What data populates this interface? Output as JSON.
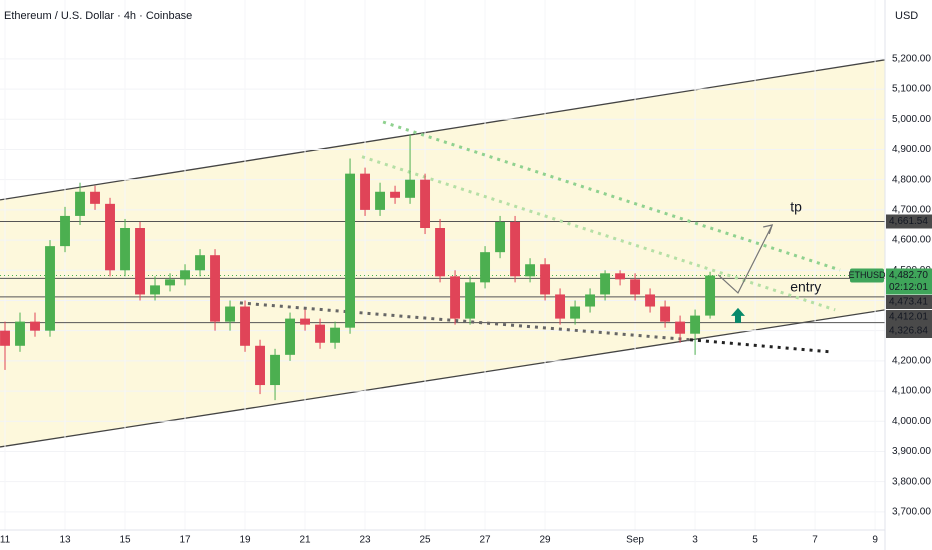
{
  "chart_data": {
    "type": "candlestick",
    "title": "Ethereum / U.S. Dollar · 4h · Coinbase",
    "currency": "USD",
    "x": [
      0,
      0.5,
      1,
      1.5,
      2,
      2.5,
      3,
      3.5,
      4,
      4.5,
      5,
      5.5,
      6,
      6.5,
      7,
      7.5,
      8,
      8.5,
      9,
      9.5,
      10,
      10.5,
      11,
      11.5,
      12,
      12.5,
      13,
      13.5,
      14,
      14.5,
      15,
      15.5,
      16,
      16.5,
      17,
      17.5,
      18,
      18.5,
      19,
      19.5,
      20,
      20.5,
      21,
      21.5,
      22,
      22.5,
      23,
      23.5
    ],
    "open": [
      4300,
      4250,
      4330,
      4300,
      4580,
      4680,
      4760,
      4720,
      4500,
      4640,
      4420,
      4450,
      4470,
      4500,
      4550,
      4330,
      4380,
      4250,
      4120,
      4220,
      4340,
      4320,
      4260,
      4310,
      4820,
      4700,
      4760,
      4740,
      4800,
      4640,
      4480,
      4340,
      4460,
      4560,
      4660,
      4480,
      4520,
      4420,
      4340,
      4380,
      4420,
      4490,
      4470,
      4420,
      4380,
      4330,
      4290,
      4350
    ],
    "high": [
      4330,
      4360,
      4360,
      4600,
      4710,
      4790,
      4780,
      4740,
      4670,
      4660,
      4480,
      4490,
      4520,
      4570,
      4570,
      4400,
      4400,
      4270,
      4240,
      4360,
      4370,
      4340,
      4330,
      4870,
      4840,
      4790,
      4780,
      4950,
      4820,
      4670,
      4500,
      4480,
      4580,
      4680,
      4680,
      4540,
      4540,
      4440,
      4400,
      4440,
      4500,
      4500,
      4490,
      4440,
      4400,
      4350,
      4370,
      4495
    ],
    "low": [
      4170,
      4230,
      4280,
      4280,
      4560,
      4650,
      4700,
      4480,
      4480,
      4400,
      4400,
      4430,
      4450,
      4480,
      4300,
      4300,
      4230,
      4090,
      4070,
      4200,
      4300,
      4240,
      4240,
      4290,
      4680,
      4680,
      4720,
      4720,
      4620,
      4460,
      4320,
      4320,
      4440,
      4540,
      4460,
      4460,
      4400,
      4320,
      4320,
      4360,
      4400,
      4450,
      4400,
      4360,
      4310,
      4260,
      4220,
      4340
    ],
    "close": [
      4250,
      4330,
      4300,
      4580,
      4680,
      4760,
      4720,
      4500,
      4640,
      4420,
      4450,
      4470,
      4500,
      4550,
      4330,
      4380,
      4250,
      4120,
      4220,
      4340,
      4320,
      4260,
      4310,
      4820,
      4700,
      4760,
      4740,
      4800,
      4640,
      4480,
      4340,
      4460,
      4560,
      4660,
      4480,
      4520,
      4420,
      4340,
      4380,
      4420,
      4490,
      4470,
      4420,
      4380,
      4330,
      4290,
      4350,
      4482.7
    ],
    "up_color": "#4caf50",
    "down_color": "#e04458",
    "xlim": [
      -0.167,
      29.33
    ],
    "ylim": [
      3640,
      5395
    ],
    "xticks": [
      {
        "value": 0,
        "label": "11"
      },
      {
        "value": 2,
        "label": "13"
      },
      {
        "value": 4,
        "label": "15"
      },
      {
        "value": 6,
        "label": "17"
      },
      {
        "value": 8,
        "label": "19"
      },
      {
        "value": 10,
        "label": "21"
      },
      {
        "value": 12,
        "label": "23"
      },
      {
        "value": 14,
        "label": "25"
      },
      {
        "value": 16,
        "label": "27"
      },
      {
        "value": 18,
        "label": "29"
      },
      {
        "value": 21,
        "label": "Sep"
      },
      {
        "value": 23,
        "label": "3"
      },
      {
        "value": 25,
        "label": "5"
      },
      {
        "value": 27,
        "label": "7"
      },
      {
        "value": 29,
        "label": "9"
      }
    ],
    "yticks": [
      {
        "value": 3700,
        "label": "3,700.00"
      },
      {
        "value": 3800,
        "label": "3,800.00"
      },
      {
        "value": 3900,
        "label": "3,900.00"
      },
      {
        "value": 4000,
        "label": "4,000.00"
      },
      {
        "value": 4100,
        "label": "4,100.00"
      },
      {
        "value": 4200,
        "label": "4,200.00"
      },
      {
        "value": 4300,
        "label": "4,300.00"
      },
      {
        "value": 4400,
        "label": "4,400.00"
      },
      {
        "value": 4500,
        "label": "4,500.00"
      },
      {
        "value": 4600,
        "label": "4,600.00"
      },
      {
        "value": 4700,
        "label": "4,700.00"
      },
      {
        "value": 4800,
        "label": "4,800.00"
      },
      {
        "value": 4900,
        "label": "4,900.00"
      },
      {
        "value": 5000,
        "label": "5,000.00"
      },
      {
        "value": 5100,
        "label": "5,100.00"
      },
      {
        "value": 5200,
        "label": "5,200.00"
      }
    ],
    "levels": [
      {
        "value": 4661.54,
        "label": "4,661.54"
      },
      {
        "value": 4473.41,
        "label": "4,473.41"
      },
      {
        "value": 4412.01,
        "label": "4,412.01"
      },
      {
        "value": 4326.84,
        "label": "4,326.84"
      }
    ],
    "current_price": {
      "name": "ETHUSD",
      "value": 4482.7,
      "label": "4,482.70",
      "countdown": "02:12:01"
    },
    "channel": {
      "upper": {
        "x": [
          -0.167,
          29.33
        ],
        "y": [
          4733,
          5197
        ]
      },
      "lower": {
        "x": [
          -0.167,
          29.33
        ],
        "y": [
          3915,
          4369
        ]
      }
    },
    "dotted_lines": [
      {
        "color": "#8fd18f",
        "x": [
          12.6,
          27.83
        ],
        "y": [
          4991,
          4501
        ]
      },
      {
        "color": "#b5dfa5",
        "x": [
          11.9,
          27.67
        ],
        "y": [
          4876,
          4369
        ]
      },
      {
        "color": "#666666",
        "x": [
          7.83,
          22.83
        ],
        "y": [
          4392,
          4270
        ]
      },
      {
        "color": "#222222",
        "x": [
          22.83,
          27.5
        ],
        "y": [
          4270,
          4230
        ]
      }
    ],
    "arrow": {
      "x": [
        23.77,
        24.43,
        25.57
      ],
      "y": [
        4485,
        4425,
        4650
      ]
    },
    "annotations": [
      {
        "text": "tp",
        "x": 26.17,
        "y": 4707
      },
      {
        "text": "entry",
        "x": 26.17,
        "y": 4442
      }
    ]
  }
}
